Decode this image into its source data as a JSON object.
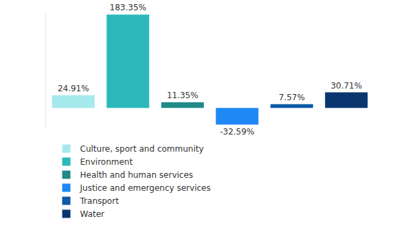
{
  "chart_data": {
    "type": "bar",
    "categories": [
      "Culture, sport and community",
      "Environment",
      "Health and human services",
      "Justice and emergency services",
      "Transport",
      "Water"
    ],
    "values": [
      24.91,
      183.35,
      11.35,
      -32.59,
      7.57,
      30.71
    ],
    "value_labels": [
      "24.91%",
      "183.35%",
      "11.35%",
      "-32.59%",
      "7.57%",
      "30.71%"
    ],
    "colors": [
      "#a6e9ec",
      "#2cb8b8",
      "#1f8a88",
      "#1e88f5",
      "#0d5aa8",
      "#0a3670"
    ],
    "ylim": [
      -40,
      185
    ],
    "yticks": [],
    "grid": false,
    "data_labels": true,
    "tick_labels": false,
    "legend": "bottom"
  }
}
